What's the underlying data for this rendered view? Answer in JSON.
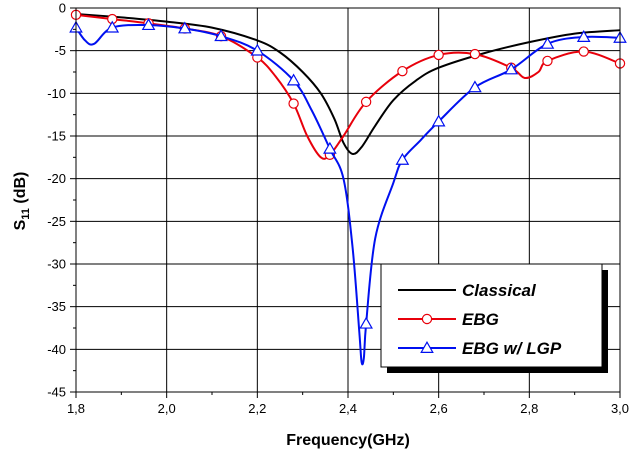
{
  "chart_data": {
    "type": "line",
    "xlabel": "Frequency(GHz)",
    "ylabel_main": "S",
    "ylabel_sub": "11",
    "ylabel_unit": " (dB)",
    "xlim": [
      1.8,
      3.0
    ],
    "ylim": [
      -45,
      0
    ],
    "x_ticks": [
      1.8,
      2.0,
      2.2,
      2.4,
      2.6,
      2.8,
      3.0
    ],
    "x_tick_labels": [
      "1,8",
      "2,0",
      "2,2",
      "2,4",
      "2,6",
      "2,8",
      "3,0"
    ],
    "y_ticks": [
      0,
      -5,
      -10,
      -15,
      -20,
      -25,
      -30,
      -35,
      -40,
      -45
    ],
    "y_tick_labels": [
      "0",
      "-5",
      "-10",
      "-15",
      "-20",
      "-25",
      "-30",
      "-35",
      "-40",
      "-45"
    ],
    "grid": true,
    "legend_position": "bottom-right",
    "series": [
      {
        "name": "Classical",
        "color": "#000000",
        "marker": "none",
        "x": [
          1.8,
          1.9,
          2.0,
          2.1,
          2.2,
          2.25,
          2.3,
          2.34,
          2.37,
          2.39,
          2.41,
          2.43,
          2.46,
          2.5,
          2.55,
          2.6,
          2.7,
          2.8,
          2.9,
          3.0
        ],
        "y": [
          -0.7,
          -1.1,
          -1.6,
          -2.3,
          -3.8,
          -5.2,
          -7.5,
          -10.0,
          -13.0,
          -15.8,
          -17.1,
          -16.3,
          -13.8,
          -10.8,
          -8.5,
          -7.0,
          -5.3,
          -4.0,
          -3.0,
          -2.6
        ]
      },
      {
        "name": "EBG",
        "color": "#e8000b",
        "marker": "circle",
        "x": [
          1.8,
          1.88,
          1.96,
          2.04,
          2.12,
          2.2,
          2.24,
          2.28,
          2.31,
          2.34,
          2.36,
          2.39,
          2.44,
          2.52,
          2.6,
          2.68,
          2.76,
          2.79,
          2.82,
          2.84,
          2.92,
          3.0
        ],
        "y": [
          -0.8,
          -1.3,
          -1.8,
          -2.4,
          -3.3,
          -5.8,
          -8.0,
          -11.2,
          -15.0,
          -17.5,
          -17.2,
          -15.0,
          -11.0,
          -7.4,
          -5.5,
          -5.4,
          -7.0,
          -8.2,
          -7.5,
          -6.2,
          -5.1,
          -6.5
        ],
        "markers_x": [
          1.8,
          1.88,
          1.96,
          2.04,
          2.12,
          2.2,
          2.28,
          2.36,
          2.44,
          2.52,
          2.6,
          2.68,
          2.76,
          2.84,
          2.92,
          3.0
        ],
        "markers_y": [
          -0.8,
          -1.3,
          -1.8,
          -2.4,
          -3.3,
          -5.8,
          -11.2,
          -17.2,
          -11.0,
          -7.4,
          -5.5,
          -5.4,
          -7.0,
          -6.2,
          -5.1,
          -6.5
        ]
      },
      {
        "name": "EBG w/ LGP",
        "color": "#0010f0",
        "marker": "triangle",
        "x": [
          1.8,
          1.82,
          1.84,
          1.88,
          1.96,
          2.04,
          2.12,
          2.2,
          2.28,
          2.32,
          2.36,
          2.39,
          2.41,
          2.425,
          2.43,
          2.435,
          2.44,
          2.46,
          2.5,
          2.52,
          2.56,
          2.6,
          2.68,
          2.76,
          2.84,
          2.92,
          3.0
        ],
        "y": [
          -2.3,
          -3.8,
          -4.2,
          -2.3,
          -2.0,
          -2.4,
          -3.3,
          -5.0,
          -8.5,
          -12.0,
          -16.5,
          -20.0,
          -28.0,
          -38.0,
          -41.5,
          -41.0,
          -37.0,
          -27.0,
          -20.5,
          -17.8,
          -15.5,
          -13.3,
          -9.3,
          -7.2,
          -4.2,
          -3.4,
          -3.5
        ],
        "markers_x": [
          1.8,
          1.88,
          1.96,
          2.04,
          2.12,
          2.2,
          2.28,
          2.36,
          2.44,
          2.52,
          2.6,
          2.68,
          2.76,
          2.84,
          2.92,
          3.0
        ],
        "markers_y": [
          -2.3,
          -2.3,
          -2.0,
          -2.4,
          -3.3,
          -5.0,
          -8.5,
          -16.5,
          -37.0,
          -17.8,
          -13.3,
          -9.3,
          -7.2,
          -4.2,
          -3.4,
          -3.5
        ]
      }
    ]
  }
}
